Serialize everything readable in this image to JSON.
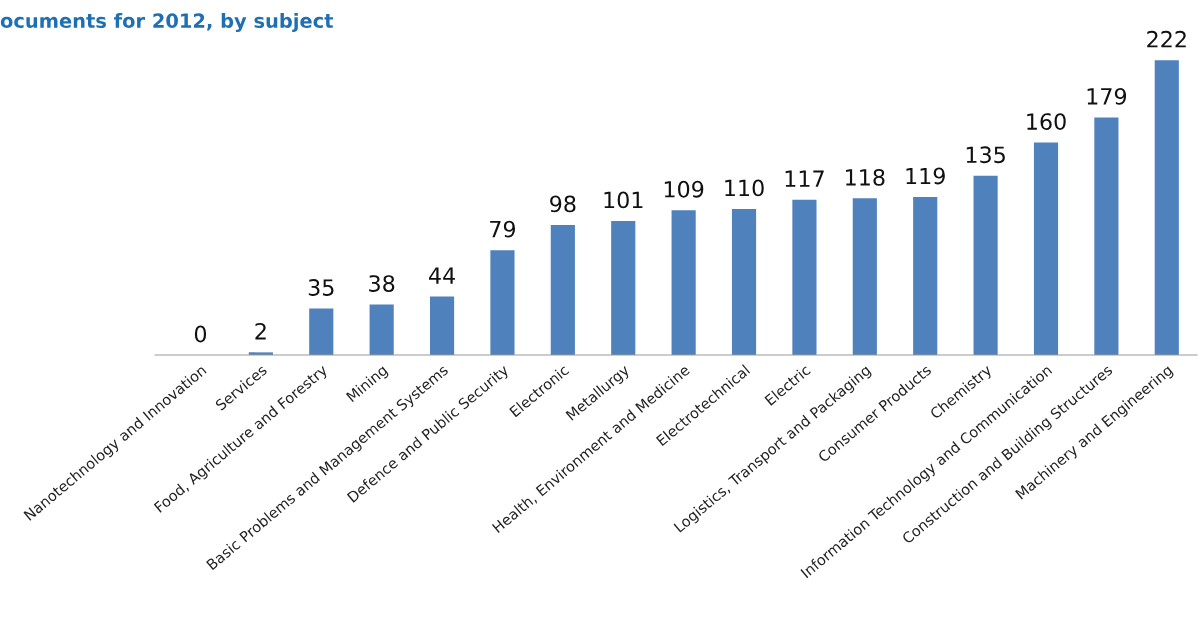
{
  "chart_data": {
    "type": "bar",
    "title": "ocuments for 2012, by subject",
    "categories": [
      "Nanotechnology and Innovation",
      "Services",
      "Food, Agriculture and Forestry",
      "Mining",
      "Basic Problems and Management Systems",
      "Defence and Public Security",
      "Electronic",
      "Metallurgy",
      "Health, Environment and Medicine",
      "Electrotechnical",
      "Electric",
      "Logistics, Transport and Packaging",
      "Consumer Products",
      "Chemistry",
      "Information Technology and Communication",
      "Construction and Building Structures",
      "Machinery and Engineering"
    ],
    "values": [
      0,
      2,
      35,
      38,
      44,
      79,
      98,
      101,
      109,
      110,
      117,
      118,
      119,
      135,
      160,
      179,
      222
    ],
    "color": "#4f81bd",
    "data_labels": true
  }
}
